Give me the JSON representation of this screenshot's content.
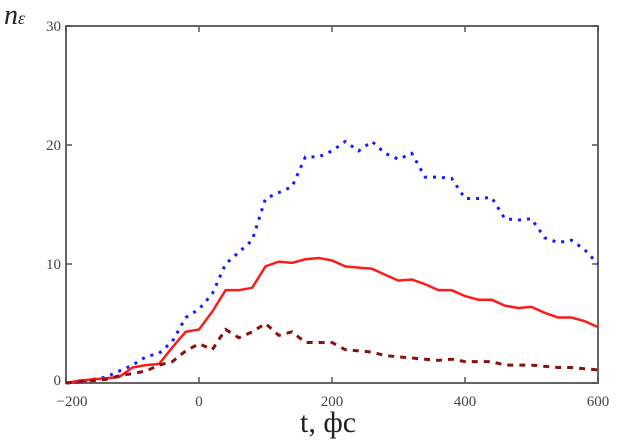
{
  "chart_data": {
    "type": "line",
    "title": "",
    "xlabel": "t, фс",
    "ylabel_main": "n",
    "ylabel_sub": "ε",
    "xlim": [
      -200,
      600
    ],
    "ylim": [
      0,
      30
    ],
    "xticks": [
      "−200",
      "0",
      "200",
      "400",
      "600"
    ],
    "xtick_values": [
      -200,
      0,
      200,
      400,
      600
    ],
    "yticks": [
      "0",
      "10",
      "20",
      "30"
    ],
    "ytick_values": [
      0,
      10,
      20,
      30
    ],
    "grid": false,
    "x": [
      -200,
      -180,
      -160,
      -140,
      -120,
      -100,
      -80,
      -60,
      -40,
      -20,
      0,
      20,
      40,
      60,
      80,
      100,
      120,
      140,
      160,
      180,
      200,
      220,
      240,
      260,
      280,
      300,
      320,
      340,
      360,
      380,
      400,
      420,
      440,
      460,
      480,
      500,
      520,
      540,
      560,
      580,
      600
    ],
    "series": [
      {
        "style": "dotted",
        "color": "#1a1aff",
        "values": [
          0,
          0.1,
          0.3,
          0.5,
          1.0,
          1.5,
          2.2,
          2.5,
          3.5,
          5.5,
          6.2,
          7.5,
          10,
          11,
          12,
          15.5,
          16,
          16.5,
          19,
          19,
          19.5,
          20.3,
          19.5,
          20.3,
          19.3,
          18.8,
          19.3,
          17.3,
          17.3,
          17.2,
          15.5,
          15.5,
          15.6,
          13.8,
          13.7,
          13.8,
          12.2,
          11.8,
          12,
          11.2,
          10
        ]
      },
      {
        "style": "solid",
        "color": "#ff1a1a",
        "values": [
          0,
          0.2,
          0.3,
          0.4,
          0.5,
          1.3,
          1.5,
          1.6,
          3.0,
          4.3,
          4.5,
          6.0,
          7.8,
          7.8,
          8.0,
          9.8,
          10.2,
          10.1,
          10.4,
          10.5,
          10.3,
          9.8,
          9.7,
          9.6,
          9.1,
          8.6,
          8.7,
          8.3,
          7.8,
          7.8,
          7.3,
          7.0,
          7.0,
          6.5,
          6.3,
          6.4,
          5.9,
          5.5,
          5.5,
          5.2,
          4.7
        ]
      },
      {
        "style": "dashed",
        "color": "#8b1010",
        "values": [
          0,
          0.1,
          0.2,
          0.3,
          0.6,
          0.8,
          1.0,
          1.5,
          1.8,
          2.7,
          3.3,
          2.8,
          4.5,
          3.8,
          4.3,
          5.0,
          4.0,
          4.3,
          3.4,
          3.4,
          3.4,
          2.8,
          2.7,
          2.6,
          2.3,
          2.2,
          2.1,
          2.0,
          1.9,
          2.0,
          1.8,
          1.8,
          1.8,
          1.5,
          1.5,
          1.5,
          1.4,
          1.3,
          1.3,
          1.2,
          1.1
        ]
      }
    ]
  }
}
